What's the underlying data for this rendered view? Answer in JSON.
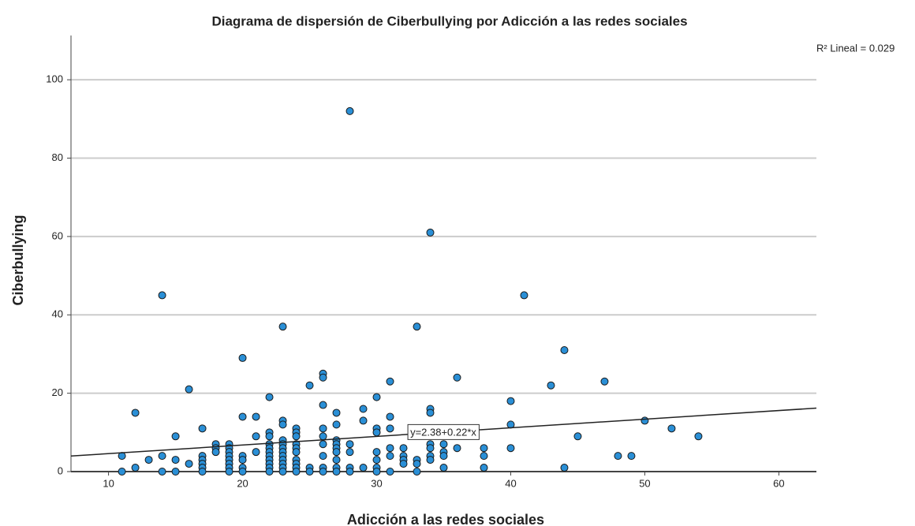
{
  "chart_data": {
    "type": "scatter",
    "title": "Diagrama de dispersión de Ciberbullying por Adicción a las redes sociales",
    "x_label": "Adicción a las redes sociales",
    "y_label": "Ciberbullying",
    "r2_label": "R² Lineal = 0.029",
    "fit": {
      "intercept": 2.38,
      "slope": 0.22,
      "label": "y=2.38+0.22*x",
      "color": "#222222"
    },
    "color": "#2a8fd6",
    "grid": true,
    "xlim": [
      7.2,
      62.8
    ],
    "ylim": [
      0,
      111.3
    ],
    "xticks": [
      10,
      20,
      30,
      40,
      50,
      60
    ],
    "yticks": [
      0,
      20,
      40,
      60,
      80,
      100
    ],
    "x": [
      11,
      11,
      12,
      12,
      13,
      14,
      14,
      14,
      15,
      15,
      15,
      16,
      16,
      17,
      17,
      17,
      17,
      17,
      17,
      18,
      18,
      18,
      19,
      19,
      19,
      19,
      19,
      19,
      19,
      19,
      20,
      20,
      20,
      20,
      20,
      20,
      21,
      21,
      21,
      22,
      22,
      22,
      22,
      22,
      22,
      22,
      22,
      22,
      22,
      22,
      23,
      23,
      23,
      23,
      23,
      23,
      23,
      23,
      23,
      23,
      23,
      23,
      24,
      24,
      24,
      24,
      24,
      24,
      24,
      24,
      24,
      24,
      25,
      25,
      25,
      26,
      26,
      26,
      26,
      26,
      26,
      26,
      26,
      26,
      27,
      27,
      27,
      27,
      27,
      27,
      27,
      27,
      27,
      28,
      28,
      28,
      28,
      28,
      29,
      29,
      29,
      30,
      30,
      30,
      30,
      30,
      30,
      30,
      31,
      31,
      31,
      31,
      31,
      31,
      32,
      32,
      32,
      32,
      33,
      33,
      33,
      33,
      34,
      34,
      34,
      34,
      34,
      34,
      34,
      35,
      35,
      35,
      35,
      36,
      36,
      38,
      38,
      38,
      40,
      40,
      40,
      41,
      43,
      44,
      44,
      45,
      47,
      48,
      49,
      50,
      52,
      54
    ],
    "values": [
      4,
      0,
      15,
      1,
      3,
      45,
      4,
      0,
      9,
      3,
      0,
      21,
      2,
      11,
      4,
      3,
      2,
      1,
      0,
      7,
      6,
      5,
      7,
      6,
      5,
      4,
      3,
      2,
      1,
      0,
      29,
      14,
      4,
      3,
      1,
      0,
      14,
      9,
      5,
      19,
      10,
      9,
      7,
      6,
      5,
      4,
      3,
      2,
      1,
      0,
      37,
      13,
      12,
      8,
      7,
      6,
      5,
      4,
      3,
      2,
      1,
      0,
      11,
      10,
      9,
      7,
      6,
      5,
      3,
      2,
      1,
      0,
      22,
      1,
      0,
      25,
      24,
      17,
      11,
      9,
      7,
      4,
      1,
      0,
      15,
      12,
      8,
      7,
      6,
      5,
      3,
      1,
      0,
      92,
      7,
      5,
      1,
      0,
      16,
      13,
      1,
      19,
      11,
      10,
      5,
      3,
      1,
      0,
      23,
      14,
      11,
      6,
      4,
      0,
      6,
      4,
      3,
      2,
      37,
      3,
      2,
      0,
      61,
      16,
      15,
      7,
      6,
      4,
      3,
      7,
      5,
      4,
      1,
      24,
      6,
      6,
      4,
      1,
      18,
      12,
      6,
      45,
      22,
      31,
      1,
      9,
      23,
      4,
      4,
      13,
      11,
      9
    ]
  }
}
